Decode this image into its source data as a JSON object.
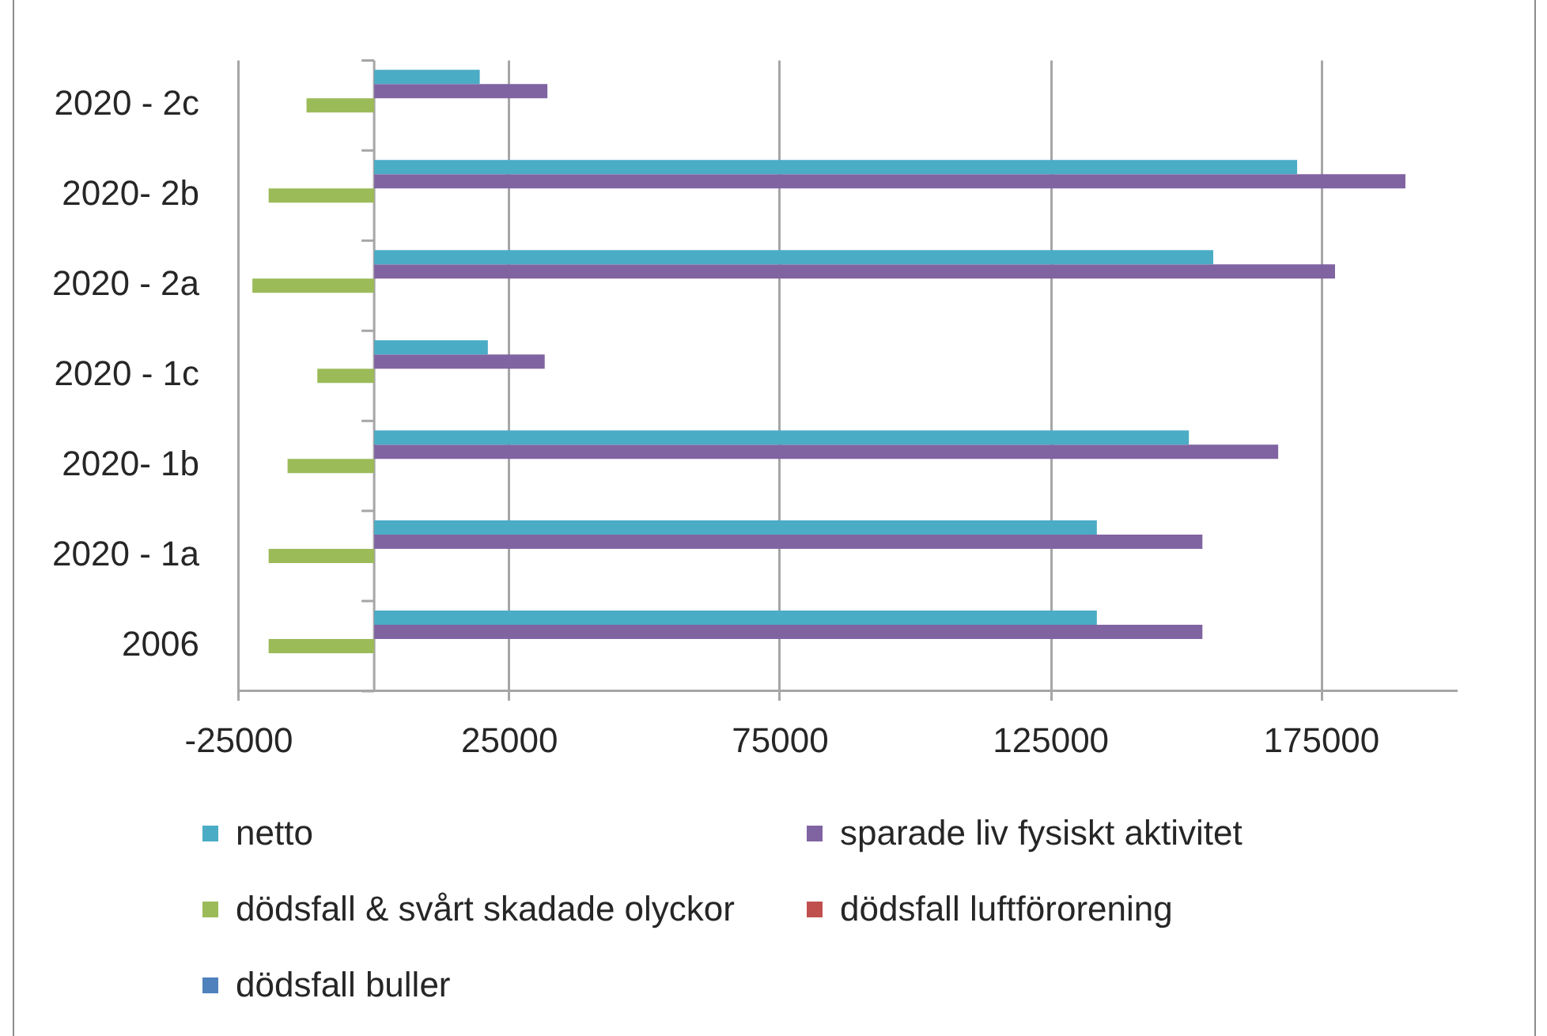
{
  "chart_data": {
    "type": "bar",
    "orientation": "horizontal",
    "categories": [
      "2020 - 2c",
      "2020- 2b",
      "2020 - 2a",
      "2020 - 1c",
      "2020- 1b",
      "2020 - 1a",
      "2006"
    ],
    "series": [
      {
        "name": "netto",
        "color": "#4bacc6",
        "values": [
          19500,
          170500,
          155000,
          21000,
          150500,
          133500,
          133500
        ]
      },
      {
        "name": "sparade liv fysiskt aktivitet",
        "color": "#8064a2",
        "values": [
          32000,
          190500,
          177500,
          31500,
          167000,
          153000,
          153000
        ]
      },
      {
        "name": "dödsfall & svårt skadade olyckor",
        "color": "#9bbb59",
        "values": [
          -12500,
          -19500,
          -22500,
          -10500,
          -16000,
          -19500,
          -19500
        ]
      },
      {
        "name": "dödsfall luftförorening",
        "color": "#c0504d",
        "values": [
          0,
          0,
          0,
          0,
          0,
          0,
          0
        ]
      },
      {
        "name": "dödsfall buller",
        "color": "#4f81bd",
        "values": [
          0,
          0,
          0,
          0,
          0,
          0,
          0
        ]
      }
    ],
    "xlim": [
      -25000,
      200000
    ],
    "xticks": [
      -25000,
      25000,
      75000,
      125000,
      175000
    ],
    "grid": "x",
    "legend": "bottom"
  }
}
